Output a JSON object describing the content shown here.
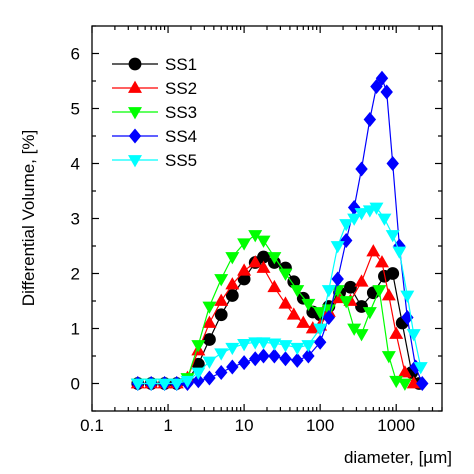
{
  "chart_data": {
    "type": "line",
    "xlabel": "diameter, [µm]",
    "ylabel": "Differential Volume, [%]",
    "xscale": "log",
    "xlim": [
      0.1,
      4000
    ],
    "ylim": [
      -0.5,
      6.5
    ],
    "x_ticks": [
      {
        "value": 0.1,
        "label": "0.1"
      },
      {
        "value": 1,
        "label": "1"
      },
      {
        "value": 10,
        "label": "10"
      },
      {
        "value": 100,
        "label": "100"
      },
      {
        "value": 1000,
        "label": "1000"
      }
    ],
    "y_ticks": [
      {
        "value": 0,
        "label": "0"
      },
      {
        "value": 1,
        "label": "1"
      },
      {
        "value": 2,
        "label": "2"
      },
      {
        "value": 3,
        "label": "3"
      },
      {
        "value": 4,
        "label": "4"
      },
      {
        "value": 5,
        "label": "5"
      },
      {
        "value": 6,
        "label": "6"
      }
    ],
    "legend_position": "top-left",
    "grid": false,
    "series": [
      {
        "name": "SS1",
        "color": "#000000",
        "marker": "circle",
        "x": [
          0.4,
          0.6,
          0.9,
          1.3,
          1.8,
          2.5,
          3.5,
          5,
          7,
          10,
          14,
          18,
          25,
          35,
          45,
          60,
          80,
          100,
          130,
          180,
          250,
          350,
          500,
          700,
          900,
          1200,
          1600,
          2000
        ],
        "y": [
          0,
          0,
          0,
          0,
          0.05,
          0.35,
          0.8,
          1.25,
          1.6,
          1.9,
          2.2,
          2.3,
          2.2,
          2.1,
          1.85,
          1.55,
          1.3,
          1.25,
          1.4,
          1.65,
          1.75,
          1.4,
          1.65,
          1.95,
          2.0,
          1.1,
          0.2,
          0
        ]
      },
      {
        "name": "SS2",
        "color": "#ff0000",
        "marker": "triangle-up",
        "x": [
          0.4,
          0.6,
          0.9,
          1.3,
          1.8,
          2.5,
          3.5,
          5,
          7,
          10,
          14,
          18,
          25,
          35,
          45,
          60,
          80,
          100,
          130,
          180,
          250,
          350,
          500,
          650,
          800,
          1000,
          1300,
          1700
        ],
        "y": [
          0,
          0,
          0,
          0,
          0.1,
          0.6,
          1.1,
          1.5,
          1.8,
          2.05,
          2.2,
          2.1,
          1.75,
          1.45,
          1.25,
          1.1,
          1.0,
          1.05,
          1.3,
          1.55,
          1.5,
          1.85,
          2.4,
          2.2,
          1.6,
          0.9,
          0.2,
          0
        ]
      },
      {
        "name": "SS3",
        "color": "#00ff00",
        "marker": "triangle-down",
        "x": [
          0.4,
          0.6,
          0.9,
          1.3,
          1.8,
          2.5,
          3.5,
          5,
          7,
          10,
          14,
          18,
          25,
          35,
          50,
          70,
          100,
          130,
          170,
          220,
          280,
          350,
          450,
          600,
          800,
          1000,
          1300
        ],
        "y": [
          0,
          0,
          0,
          0,
          0.1,
          0.7,
          1.4,
          1.9,
          2.3,
          2.55,
          2.7,
          2.6,
          2.3,
          2.0,
          1.7,
          1.45,
          1.3,
          1.35,
          1.7,
          1.5,
          1.0,
          0.9,
          1.3,
          1.7,
          0.5,
          0.05,
          0
        ]
      },
      {
        "name": "SS4",
        "color": "#0000ff",
        "marker": "diamond",
        "x": [
          0.4,
          0.6,
          0.9,
          1.3,
          1.8,
          2.5,
          3.5,
          5,
          7,
          10,
          14,
          18,
          25,
          35,
          50,
          70,
          100,
          130,
          170,
          220,
          280,
          350,
          450,
          550,
          650,
          750,
          900,
          1100,
          1400,
          1800,
          2200
        ],
        "y": [
          0,
          0,
          0,
          0,
          0,
          0.05,
          0.1,
          0.2,
          0.3,
          0.38,
          0.45,
          0.5,
          0.5,
          0.45,
          0.42,
          0.5,
          0.75,
          1.2,
          1.9,
          2.6,
          3.2,
          3.9,
          4.8,
          5.4,
          5.55,
          5.3,
          4.0,
          2.5,
          1.2,
          0.3,
          0
        ]
      },
      {
        "name": "SS5",
        "color": "#00ffff",
        "marker": "triangle-down",
        "x": [
          0.4,
          0.6,
          0.9,
          1.3,
          1.8,
          2.5,
          3.5,
          5,
          7,
          10,
          14,
          18,
          25,
          35,
          50,
          70,
          100,
          130,
          170,
          220,
          280,
          350,
          450,
          550,
          700,
          900,
          1100,
          1400,
          1700,
          2100
        ],
        "y": [
          0,
          0,
          0,
          0,
          0.05,
          0.2,
          0.4,
          0.55,
          0.65,
          0.72,
          0.75,
          0.75,
          0.73,
          0.7,
          0.65,
          0.7,
          1.0,
          1.7,
          2.5,
          2.9,
          3.0,
          3.1,
          3.15,
          3.2,
          3.0,
          2.7,
          2.4,
          1.6,
          0.9,
          0.3
        ]
      }
    ]
  }
}
